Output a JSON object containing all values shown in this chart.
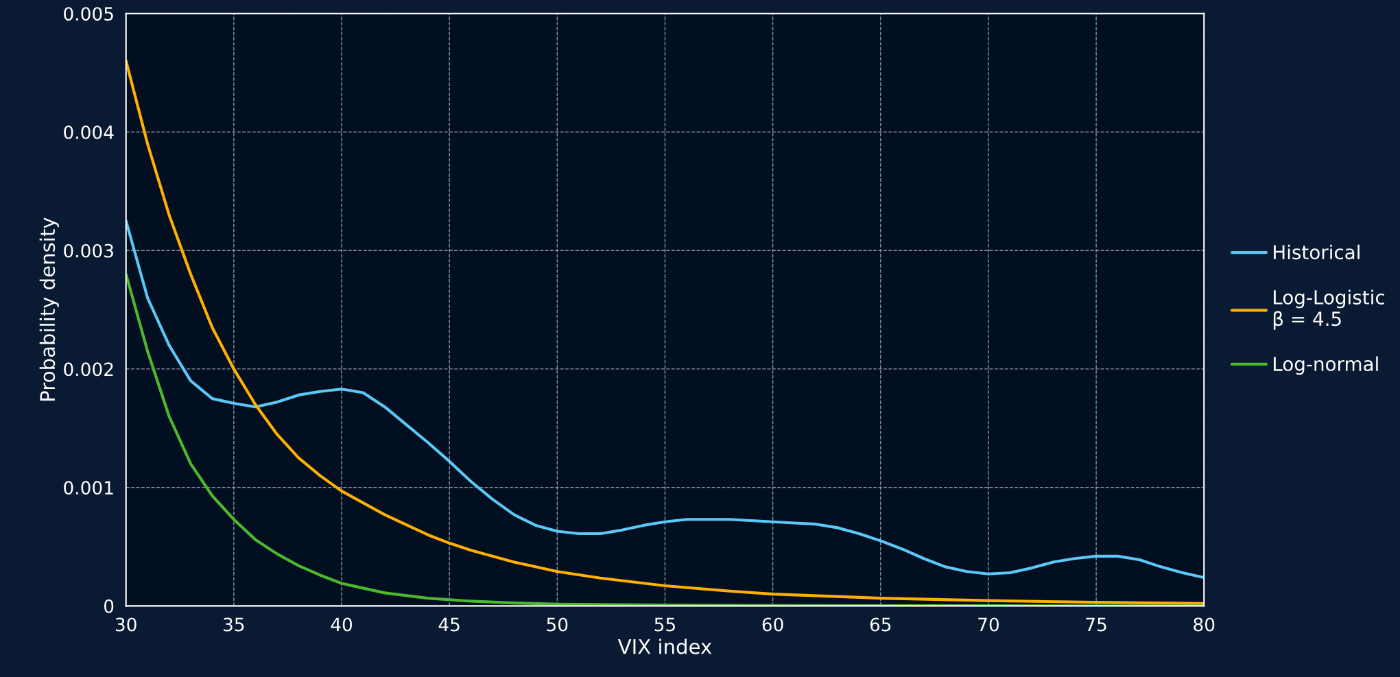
{
  "chart_data": {
    "type": "line",
    "xlabel": "VIX index",
    "ylabel": "Probability density",
    "xlim": [
      30,
      80
    ],
    "xticks": [
      30,
      35,
      40,
      45,
      50,
      55,
      60,
      65,
      70,
      75,
      80
    ],
    "ylim": [
      0,
      0.005
    ],
    "yticks": [
      0,
      0.001,
      0.002,
      0.003,
      0.004,
      0.005
    ],
    "grid": true,
    "legend": "right",
    "marker": "none",
    "line_style": "solid",
    "series": [
      {
        "name": "Historical",
        "color": "#5bc8f5",
        "x": [
          30,
          31,
          32,
          33,
          34,
          35,
          36,
          37,
          38,
          39,
          40,
          41,
          42,
          43,
          44,
          45,
          46,
          47,
          48,
          49,
          50,
          51,
          52,
          53,
          54,
          55,
          56,
          57,
          58,
          59,
          60,
          61,
          62,
          63,
          64,
          65,
          66,
          67,
          68,
          69,
          70,
          71,
          72,
          73,
          74,
          75,
          76,
          77,
          78,
          79,
          80
        ],
        "values": [
          0.00325,
          0.0026,
          0.0022,
          0.0019,
          0.00175,
          0.00171,
          0.00168,
          0.00172,
          0.00178,
          0.00181,
          0.00183,
          0.0018,
          0.00168,
          0.00153,
          0.00138,
          0.00122,
          0.00105,
          0.0009,
          0.00077,
          0.00068,
          0.00063,
          0.00061,
          0.00061,
          0.00064,
          0.00068,
          0.00071,
          0.00073,
          0.00073,
          0.00073,
          0.00072,
          0.00071,
          0.0007,
          0.00069,
          0.00066,
          0.00061,
          0.00055,
          0.00048,
          0.0004,
          0.00033,
          0.00029,
          0.00027,
          0.00028,
          0.00032,
          0.00037,
          0.0004,
          0.00042,
          0.00042,
          0.00039,
          0.00033,
          0.00028,
          0.00024
        ]
      },
      {
        "name": "Log-Logistic\nβ = 4.5",
        "color": "#ffb000",
        "x": [
          30,
          31,
          32,
          33,
          34,
          35,
          36,
          37,
          38,
          39,
          40,
          42,
          44,
          45,
          46,
          48,
          50,
          52,
          55,
          58,
          60,
          65,
          70,
          75,
          80
        ],
        "values": [
          0.0046,
          0.0039,
          0.0033,
          0.0028,
          0.00235,
          0.002,
          0.0017,
          0.00145,
          0.00125,
          0.0011,
          0.00097,
          0.00077,
          0.0006,
          0.00053,
          0.00047,
          0.00037,
          0.00029,
          0.000235,
          0.00017,
          0.000125,
          0.0001,
          6.5e-05,
          4.5e-05,
          3e-05,
          2e-05
        ]
      },
      {
        "name": "Log-normal",
        "color": "#4cb82e",
        "x": [
          30,
          31,
          32,
          33,
          34,
          35,
          36,
          37,
          38,
          39,
          40,
          42,
          44,
          46,
          48,
          50,
          55,
          60,
          70,
          80
        ],
        "values": [
          0.0028,
          0.00215,
          0.0016,
          0.0012,
          0.00093,
          0.00073,
          0.00056,
          0.00044,
          0.00034,
          0.00026,
          0.00019,
          0.00011,
          6.5e-05,
          4e-05,
          2.5e-05,
          1.5e-05,
          7e-06,
          3e-06,
          1e-06,
          0.0
        ]
      }
    ]
  }
}
